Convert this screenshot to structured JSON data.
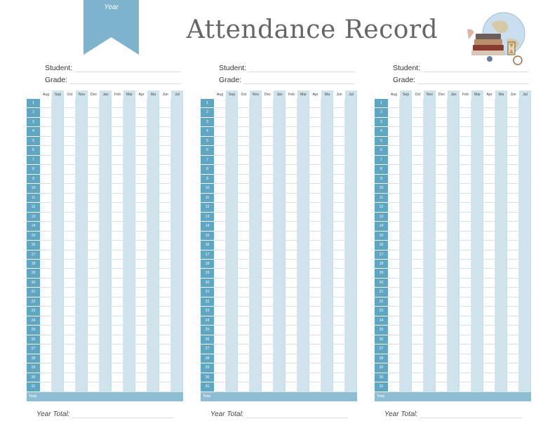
{
  "header": {
    "ribbon_label": "Year",
    "title": "Attendance Record",
    "illustration": "globe-books-hourglass-illustration"
  },
  "labels": {
    "student": "Student:",
    "grade": "Grade:",
    "total": "Total",
    "year_total": "Year Total:"
  },
  "months": [
    "Aug",
    "Sep",
    "Oct",
    "Nov",
    "Dec",
    "Jan",
    "Feb",
    "Mar",
    "Apr",
    "Ma",
    "Jun",
    "Jul"
  ],
  "shaded_months": [
    "Sep",
    "Nov",
    "Jan",
    "Mar",
    "Ma",
    "Jul"
  ],
  "day_numbers": [
    "1",
    "2",
    "3",
    "4",
    "5",
    "6",
    "7",
    "8",
    "9",
    "10",
    "11",
    "12",
    "13",
    "14",
    "15",
    "16",
    "17",
    "18",
    "19",
    "20",
    "21",
    "22",
    "23",
    "24",
    "25",
    "26",
    "27",
    "28",
    "29",
    "30",
    "31"
  ],
  "panels": [
    {
      "id": 1
    },
    {
      "id": 2
    },
    {
      "id": 3
    }
  ],
  "colors": {
    "accent": "#5fa5c4",
    "ribbon": "#7db3cc",
    "shade": "#cfe3ec",
    "total_bar": "#8cbdd3"
  }
}
